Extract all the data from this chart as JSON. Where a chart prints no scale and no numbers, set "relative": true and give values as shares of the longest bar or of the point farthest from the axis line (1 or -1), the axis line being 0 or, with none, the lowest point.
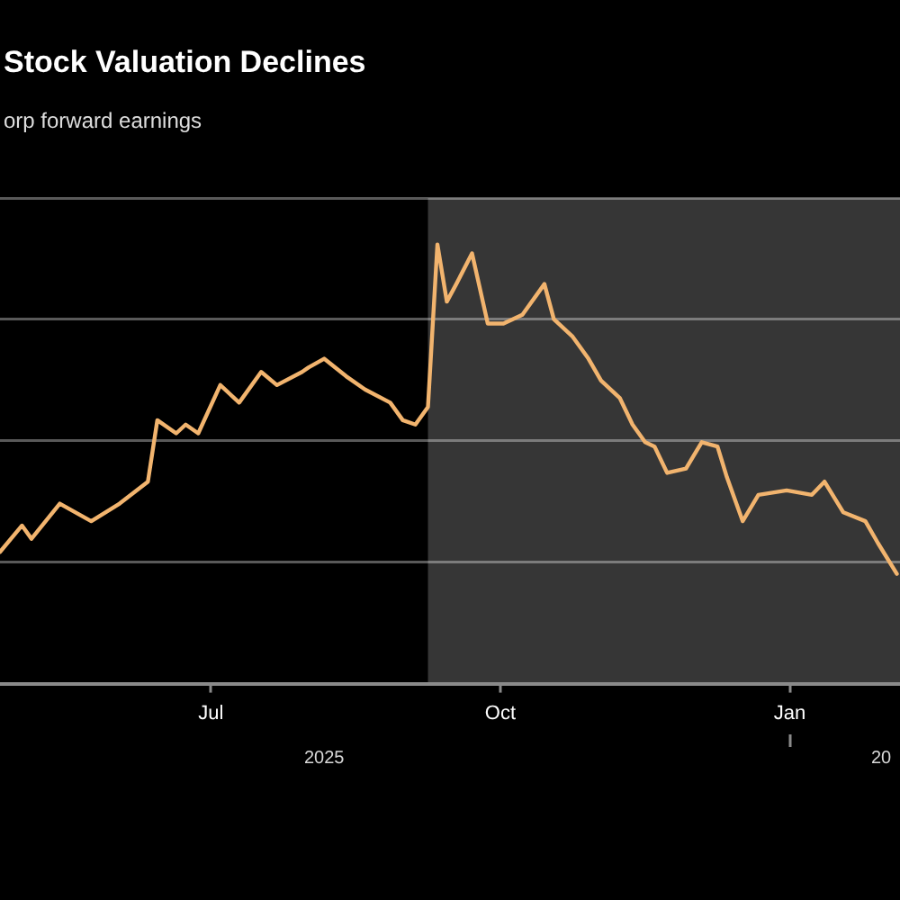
{
  "chart_data": {
    "type": "line",
    "title": "Stock Valuation Declines",
    "subtitle": "orp forward earnings",
    "relative": true,
    "grid": "y",
    "x": [
      "2025-04-25",
      "2025-05-02",
      "2025-05-05",
      "2025-05-14",
      "2025-05-24",
      "2025-06-02",
      "2025-06-11",
      "2025-06-14",
      "2025-06-20",
      "2025-06-23",
      "2025-06-27",
      "2025-07-04",
      "2025-07-10",
      "2025-07-17",
      "2025-07-22",
      "2025-07-30",
      "2025-08-01",
      "2025-08-06",
      "2025-08-13",
      "2025-08-19",
      "2025-08-27",
      "2025-08-31",
      "2025-09-04",
      "2025-09-08",
      "2025-09-11",
      "2025-09-14",
      "2025-09-17",
      "2025-09-22",
      "2025-09-27",
      "2025-10-02",
      "2025-10-08",
      "2025-10-15",
      "2025-10-18",
      "2025-10-24",
      "2025-10-29",
      "2025-11-02",
      "2025-11-08",
      "2025-11-12",
      "2025-11-16",
      "2025-11-19",
      "2025-11-23",
      "2025-11-29",
      "2025-12-04",
      "2025-12-09",
      "2025-12-12",
      "2025-12-17",
      "2025-12-22",
      "2025-12-31",
      "2026-01-08",
      "2026-01-12",
      "2026-01-18",
      "2026-01-25",
      "2026-01-29",
      "2026-02-04"
    ],
    "series": [
      {
        "color": "#f2b46e",
        "values": [
          0.3,
          0.36,
          0.33,
          0.41,
          0.37,
          0.41,
          0.46,
          0.6,
          0.57,
          0.59,
          0.57,
          0.68,
          0.64,
          0.71,
          0.68,
          0.71,
          0.72,
          0.74,
          0.7,
          0.67,
          0.64,
          0.6,
          0.59,
          0.63,
          1.0,
          0.87,
          0.91,
          0.98,
          0.82,
          0.82,
          0.84,
          0.91,
          0.83,
          0.79,
          0.74,
          0.69,
          0.65,
          0.59,
          0.55,
          0.54,
          0.48,
          0.49,
          0.55,
          0.54,
          0.47,
          0.37,
          0.43,
          0.44,
          0.43,
          0.46,
          0.39,
          0.37,
          0.32,
          0.25
        ]
      }
    ],
    "xlim": [
      "2025-04-25",
      "2026-02-05"
    ],
    "xticks": [
      {
        "value": "2025-07-01",
        "label": "Jul"
      },
      {
        "value": "2025-10-01",
        "label": "Oct"
      },
      {
        "value": "2026-01-01",
        "label": "Jan"
      }
    ],
    "x2lim": [
      "2025-04-25",
      "2026-02-05"
    ],
    "x2ticks": [
      {
        "value": "2025-08-06",
        "label": "2025"
      },
      {
        "value": "2026-01-01",
        "label": null
      },
      {
        "value": "2026-01-30",
        "label": "20"
      }
    ],
    "bands": [
      {
        "axis": "x",
        "from": "2025-09-08",
        "to": "2026-02-05",
        "color": "#363636"
      }
    ]
  }
}
